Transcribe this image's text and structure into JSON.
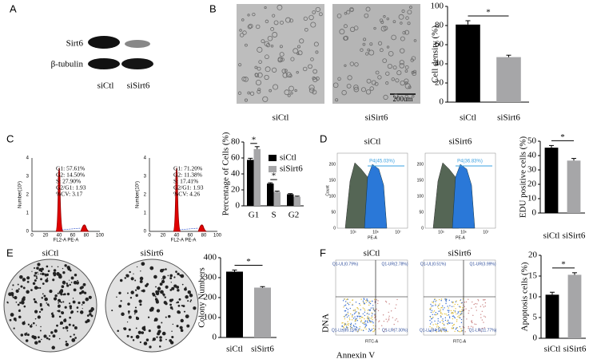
{
  "panels": {
    "A": {
      "letter": "A",
      "rows": [
        "Sirt6",
        "β-tubulin"
      ],
      "lanes": [
        "siCtl",
        "siSirt6"
      ]
    },
    "B": {
      "letter": "B",
      "images": [
        "siCtl",
        "siSirt6"
      ],
      "scale_bar": "200um"
    },
    "C": {
      "letter": "C",
      "y_label": "Number(10¹)",
      "x_label": "FL2-A PE-A",
      "yticks": [
        "0",
        "1",
        "2",
        "3",
        "4"
      ],
      "xticks": [
        "0",
        "20",
        "40",
        "60",
        "80",
        "100"
      ],
      "stats": [
        [
          "G1: 57.61%",
          "G2: 14.50%",
          "S: 27.90%",
          "G2/G1: 1.93",
          "%CV: 3.17"
        ],
        [
          "G1: 71.20%",
          "G2: 11.38%",
          "S: 17.41%",
          "G2/G1: 1.93",
          "%CV: 4.26"
        ]
      ]
    },
    "D": {
      "letter": "D",
      "titles": [
        "siCtl",
        "siSirt6"
      ],
      "gates": [
        "P4(45.03%)",
        "P4(36.83%)"
      ],
      "y_label": "Count",
      "x_label": "PE-A",
      "yticks": [
        "0",
        "50",
        "100",
        "150",
        "200"
      ],
      "xticks": [
        "10⁵",
        "10⁶",
        "10⁷"
      ]
    },
    "E": {
      "letter": "E",
      "titles": [
        "siCtl",
        "siSirt6"
      ]
    },
    "F": {
      "letter": "F",
      "titles": [
        "siCtl",
        "siSirt6"
      ],
      "y_label": "DNA",
      "x_label": "Annexin V",
      "axis_name": "FITC-A",
      "quadrants": [
        [
          "Q1-UL(0.79%)",
          "Q1-UR(2.78%)",
          "Q1-LL(89.15%)",
          "Q1-LR(7.30%)"
        ],
        [
          "Q1-UL(0.51%)",
          "Q1-UR(3.99%)",
          "Q1-LL(84.16%)",
          "Q1-LR(11.77%)"
        ]
      ]
    }
  },
  "chart_data": [
    {
      "type": "bar",
      "y_label": "Cell density (%)",
      "categories": [
        "siCtl",
        "siSirt6"
      ],
      "values": [
        81,
        47
      ],
      "errors": [
        4,
        2
      ],
      "colors": [
        "#000000",
        "#a6a6a8"
      ],
      "ylim": [
        0,
        100
      ],
      "yticks": [
        0,
        20,
        40,
        60,
        80,
        100
      ],
      "significance": "*"
    },
    {
      "type": "bar",
      "y_label": "Percentage of Cells (%)",
      "categories": [
        "G1",
        "S",
        "G2"
      ],
      "series": [
        {
          "name": "siCtl",
          "color": "#000000",
          "values": [
            57.61,
            27.9,
            14.5
          ],
          "errors": [
            2,
            1,
            0.8
          ]
        },
        {
          "name": "siSirt6",
          "color": "#a6a6a8",
          "values": [
            71.2,
            17.41,
            11.38
          ],
          "errors": [
            3,
            1,
            0.8
          ]
        }
      ],
      "ylim": [
        0,
        80
      ],
      "yticks": [
        0,
        20,
        40,
        60,
        80
      ],
      "significance": [
        "*",
        "*",
        null
      ]
    },
    {
      "type": "bar",
      "y_label": "EDU positive cells (%)",
      "categories": [
        "siCtl",
        "siSirt6"
      ],
      "values": [
        45.5,
        36.5
      ],
      "errors": [
        1.5,
        1.5
      ],
      "colors": [
        "#000000",
        "#a6a6a8"
      ],
      "ylim": [
        0,
        50
      ],
      "yticks": [
        0,
        10,
        20,
        30,
        40,
        50
      ],
      "significance": "*"
    },
    {
      "type": "bar",
      "y_label": "Colony Numbers",
      "categories": [
        "siCtl",
        "siSirt6"
      ],
      "values": [
        330,
        250
      ],
      "errors": [
        8,
        5
      ],
      "colors": [
        "#000000",
        "#a6a6a8"
      ],
      "ylim": [
        0,
        400
      ],
      "yticks": [
        0,
        100,
        200,
        300,
        400
      ],
      "significance": "*"
    },
    {
      "type": "bar",
      "y_label": "Apoptosis cells (%)",
      "categories": [
        "siCtl",
        "siSirt6"
      ],
      "values": [
        10.5,
        15.3
      ],
      "errors": [
        0.6,
        0.5
      ],
      "colors": [
        "#000000",
        "#a6a6a8"
      ],
      "ylim": [
        0,
        20
      ],
      "yticks": [
        0,
        5,
        10,
        15,
        20
      ],
      "significance": "*"
    }
  ]
}
